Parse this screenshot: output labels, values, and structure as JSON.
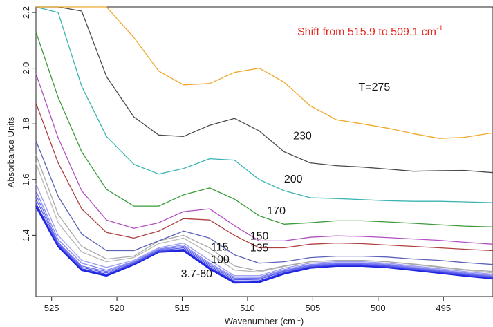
{
  "chart_data": {
    "type": "line",
    "title": "",
    "xlabel": "Wavenumber (cm",
    "xlabel_sup": "-1",
    "xlabel_end": ")",
    "ylabel": "Absorbance Units",
    "xlim": [
      526.2,
      491.2
    ],
    "ylim": [
      1.18,
      2.22
    ],
    "x_ticks": [
      525,
      520,
      515,
      510,
      505,
      500,
      495
    ],
    "y_ticks": [
      1.4,
      1.6,
      1.8,
      2.0,
      2.2
    ],
    "grid": false,
    "x": [
      526.2,
      524.5,
      522.7,
      520.8,
      518.7,
      516.8,
      514.9,
      512.9,
      511.0,
      509.1,
      507.2,
      505.2,
      503.2,
      501.2,
      499.3,
      497.3,
      495.3,
      493.4,
      491.2
    ],
    "annotation": {
      "text": "Shift from 515.9 to 509.1 cm",
      "sup": "-1",
      "color": "#e8281f"
    },
    "series": [
      {
        "label": "",
        "color": "#1f24e0",
        "bold": true,
        "values": [
          1.505,
          1.36,
          1.275,
          1.255,
          1.295,
          1.34,
          1.345,
          1.28,
          1.23,
          1.232,
          1.262,
          1.283,
          1.29,
          1.29,
          1.285,
          1.275,
          1.265,
          1.255,
          1.245
        ]
      },
      {
        "label": "",
        "color": "#3a3fe6",
        "values": [
          1.515,
          1.365,
          1.28,
          1.26,
          1.298,
          1.342,
          1.35,
          1.285,
          1.235,
          1.237,
          1.266,
          1.286,
          1.292,
          1.292,
          1.287,
          1.277,
          1.267,
          1.257,
          1.247
        ]
      },
      {
        "label": "",
        "color": "#5558ea",
        "values": [
          1.53,
          1.37,
          1.285,
          1.265,
          1.3,
          1.345,
          1.355,
          1.29,
          1.24,
          1.242,
          1.27,
          1.289,
          1.295,
          1.295,
          1.29,
          1.28,
          1.27,
          1.26,
          1.25
        ]
      },
      {
        "label": "",
        "color": "#6e70ee",
        "values": [
          1.545,
          1.375,
          1.29,
          1.27,
          1.303,
          1.348,
          1.36,
          1.295,
          1.245,
          1.246,
          1.273,
          1.292,
          1.298,
          1.298,
          1.293,
          1.283,
          1.273,
          1.263,
          1.253
        ]
      },
      {
        "label": "",
        "color": "#8587f0",
        "values": [
          1.56,
          1.385,
          1.3,
          1.275,
          1.306,
          1.351,
          1.365,
          1.3,
          1.25,
          1.25,
          1.277,
          1.295,
          1.301,
          1.301,
          1.296,
          1.286,
          1.276,
          1.266,
          1.256
        ]
      },
      {
        "label": "",
        "color": "#9a9cf4",
        "values": [
          1.585,
          1.4,
          1.31,
          1.285,
          1.31,
          1.355,
          1.372,
          1.31,
          1.255,
          1.255,
          1.282,
          1.3,
          1.305,
          1.305,
          1.3,
          1.29,
          1.28,
          1.27,
          1.26
        ]
      },
      {
        "label": "",
        "color": "#b9b9b9",
        "values": [
          1.66,
          1.445,
          1.34,
          1.305,
          1.32,
          1.37,
          1.39,
          1.335,
          1.275,
          1.268,
          1.288,
          1.305,
          1.31,
          1.31,
          1.305,
          1.295,
          1.285,
          1.275,
          1.265
        ]
      },
      {
        "label": "",
        "color": "#a8a8a8",
        "values": [
          1.69,
          1.475,
          1.36,
          1.315,
          1.325,
          1.38,
          1.4,
          1.355,
          1.29,
          1.272,
          1.29,
          1.305,
          1.31,
          1.31,
          1.305,
          1.297,
          1.287,
          1.277,
          1.27
        ]
      },
      {
        "label": "",
        "color": "#5a62b8",
        "values": [
          1.74,
          1.54,
          1.405,
          1.345,
          1.345,
          1.38,
          1.415,
          1.39,
          1.33,
          1.3,
          1.305,
          1.32,
          1.325,
          1.325,
          1.322,
          1.315,
          1.31,
          1.302,
          1.295
        ]
      },
      {
        "label": "",
        "color": "#b04040",
        "values": [
          1.875,
          1.66,
          1.495,
          1.41,
          1.39,
          1.415,
          1.46,
          1.455,
          1.4,
          1.355,
          1.355,
          1.368,
          1.372,
          1.37,
          1.365,
          1.36,
          1.355,
          1.35,
          1.345
        ]
      },
      {
        "label": "",
        "color": "#b24fc2",
        "values": [
          1.98,
          1.75,
          1.56,
          1.455,
          1.425,
          1.445,
          1.485,
          1.495,
          1.435,
          1.38,
          1.38,
          1.393,
          1.398,
          1.396,
          1.392,
          1.387,
          1.382,
          1.375,
          1.368
        ]
      },
      {
        "label": "",
        "color": "#3b9b3b",
        "values": [
          2.13,
          1.895,
          1.7,
          1.565,
          1.505,
          1.505,
          1.545,
          1.57,
          1.53,
          1.47,
          1.44,
          1.445,
          1.452,
          1.452,
          1.448,
          1.443,
          1.438,
          1.433,
          1.43
        ]
      },
      {
        "label": "",
        "color": "#3ab3b3",
        "values": [
          2.22,
          2.2,
          1.935,
          1.755,
          1.655,
          1.62,
          1.64,
          1.675,
          1.67,
          1.6,
          1.56,
          1.535,
          1.532,
          1.528,
          1.524,
          1.522,
          1.522,
          1.52,
          1.517
        ]
      },
      {
        "label": "",
        "color": "#4a4a4a",
        "values": [
          2.22,
          2.22,
          2.205,
          1.97,
          1.825,
          1.76,
          1.755,
          1.795,
          1.82,
          1.775,
          1.7,
          1.66,
          1.65,
          1.645,
          1.638,
          1.63,
          1.632,
          1.633,
          1.625
        ]
      },
      {
        "label": "",
        "color": "#f0a82a",
        "values": [
          2.22,
          2.22,
          2.22,
          2.22,
          2.11,
          1.99,
          1.94,
          1.945,
          1.985,
          2.0,
          1.95,
          1.865,
          1.815,
          1.8,
          1.785,
          1.765,
          1.748,
          1.752,
          1.768
        ]
      }
    ],
    "series_labels": [
      {
        "text": "T=275",
        "x": 501.5,
        "y": 1.92
      },
      {
        "text": "230",
        "x": 506.5,
        "y": 1.745
      },
      {
        "text": "200",
        "x": 507.2,
        "y": 1.59
      },
      {
        "text": "170",
        "x": 508.5,
        "y": 1.475
      },
      {
        "text": "150",
        "x": 509.8,
        "y": 1.385
      },
      {
        "text": "135",
        "x": 509.8,
        "y": 1.342
      },
      {
        "text": "115",
        "x": 512.8,
        "y": 1.345
      },
      {
        "text": "100",
        "x": 512.8,
        "y": 1.3
      },
      {
        "text": "3.7-80",
        "x": 515.1,
        "y": 1.25
      }
    ]
  }
}
